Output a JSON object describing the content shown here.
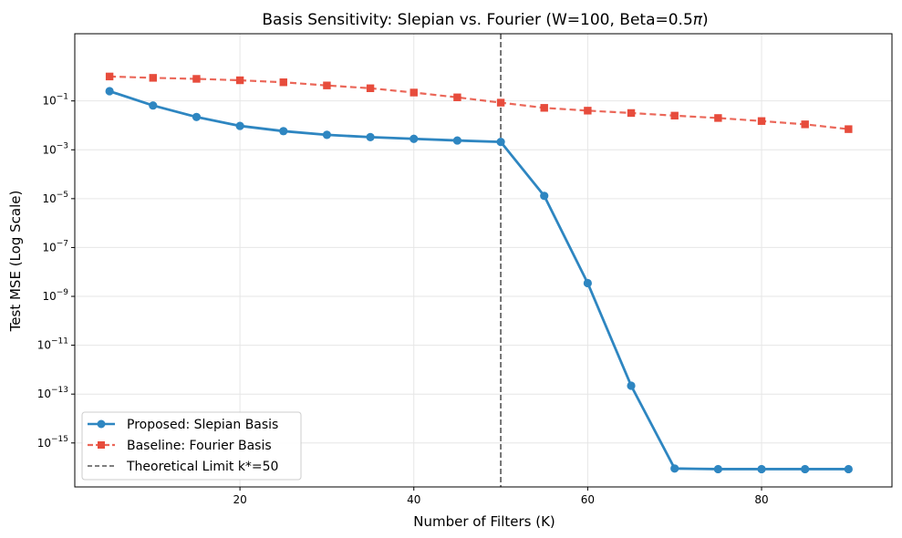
{
  "chart_data": {
    "type": "line",
    "title_prefix": "Basis Sensitivity: Slepian vs. Fourier (W=100, Beta=0.5",
    "title_pi": "π",
    "title_suffix": ")",
    "xlabel": "Number of Filters (K)",
    "ylabel": "Test MSE (Log Scale)",
    "xlim": [
      1,
      95
    ],
    "ylim_log10": [
      -16.8,
      1.75
    ],
    "y_scale": "log",
    "grid": true,
    "legend_position": "lower-left",
    "x_ticks": [
      20,
      40,
      60,
      80
    ],
    "x_tick_labels": [
      "20",
      "40",
      "60",
      "80"
    ],
    "y_ticks_exp": [
      -15,
      -13,
      -11,
      -9,
      -7,
      -5,
      -3,
      -1
    ],
    "y_tick_labels": [
      {
        "base": "10",
        "exp": "−15"
      },
      {
        "base": "10",
        "exp": "−13"
      },
      {
        "base": "10",
        "exp": "−11"
      },
      {
        "base": "10",
        "exp": "−9"
      },
      {
        "base": "10",
        "exp": "−7"
      },
      {
        "base": "10",
        "exp": "−5"
      },
      {
        "base": "10",
        "exp": "−3"
      },
      {
        "base": "10",
        "exp": "−1"
      }
    ],
    "x": [
      5,
      10,
      15,
      20,
      25,
      30,
      35,
      40,
      45,
      50,
      55,
      60,
      65,
      70,
      75,
      80,
      85,
      90
    ],
    "series": [
      {
        "name": "Proposed: Slepian Basis",
        "color": "#2E86C1",
        "style": "solid",
        "marker": "circle",
        "values": [
          0.25,
          0.065,
          0.022,
          0.0095,
          0.0058,
          0.0041,
          0.0033,
          0.0028,
          0.0024,
          0.0021,
          1.3e-05,
          3.5e-09,
          2.2e-13,
          9e-17,
          8.5e-17,
          8.5e-17,
          8.5e-17,
          8.5e-17
        ]
      },
      {
        "name": "Baseline: Fourier Basis",
        "color": "#E74C3C",
        "style": "dashed",
        "marker": "square",
        "values": [
          1.0,
          0.88,
          0.8,
          0.7,
          0.58,
          0.43,
          0.33,
          0.22,
          0.14,
          0.085,
          0.052,
          0.04,
          0.032,
          0.025,
          0.02,
          0.015,
          0.011,
          0.007
        ]
      }
    ],
    "vline": {
      "x": 50,
      "name": "Theoretical Limit k*=50",
      "color": "#555555",
      "style": "dashed"
    }
  }
}
